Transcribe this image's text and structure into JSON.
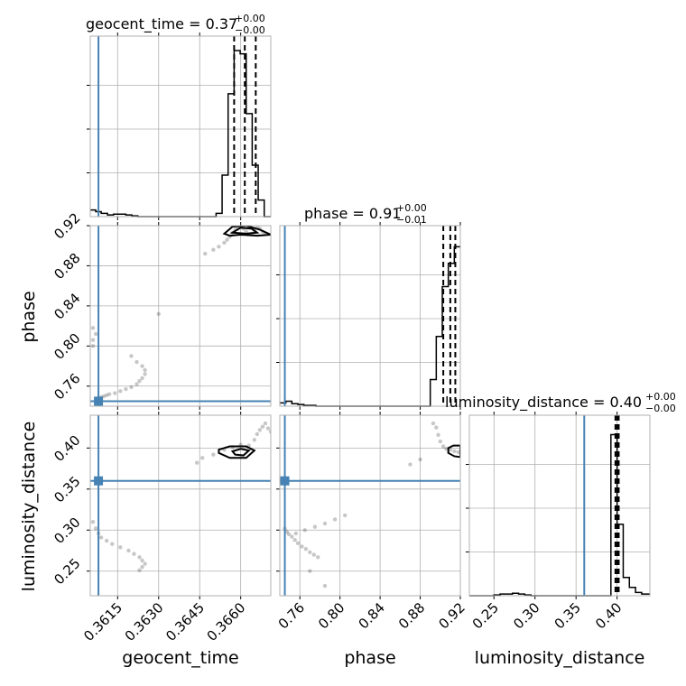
{
  "chart_data": {
    "type": "corner",
    "parameters": [
      {
        "name": "geocent_time",
        "label": "geocent_time",
        "title_main": "geocent_time = 0.37",
        "title_plus": "+0.00",
        "title_minus": "−0.00",
        "lim": [
          0.3605,
          0.3671
        ],
        "ticks": [
          0.3615,
          0.363,
          0.3645,
          0.366
        ],
        "tick_labels": [
          "0.3615",
          "0.3630",
          "0.3645",
          "0.3660"
        ],
        "truth": 0.3608,
        "quantiles": [
          0.36576,
          0.36615,
          0.36655
        ]
      },
      {
        "name": "phase",
        "label": "phase",
        "title_main": "phase = 0.91",
        "title_plus": "+0.00",
        "title_minus": "−0.01",
        "lim": [
          0.74,
          0.92
        ],
        "ticks": [
          0.76,
          0.8,
          0.84,
          0.88,
          0.92
        ],
        "tick_labels": [
          "0.76",
          "0.80",
          "0.84",
          "0.88",
          "0.92"
        ],
        "truth": 0.745,
        "quantiles": [
          0.903,
          0.91,
          0.915
        ]
      },
      {
        "name": "luminosity_distance",
        "label": "luminosity_distance",
        "title_main": "luminosity_distance = 0.40",
        "title_plus": "+0.00",
        "title_minus": "−0.00",
        "lim": [
          0.22,
          0.44
        ],
        "ticks": [
          0.25,
          0.3,
          0.35,
          0.4
        ],
        "tick_labels": [
          "0.25",
          "0.30",
          "0.35",
          "0.40"
        ],
        "truth": 0.36,
        "quantiles": [
          0.398,
          0.4,
          0.402
        ]
      }
    ],
    "histograms": [
      {
        "param": "geocent_time",
        "max": 1.0,
        "edges": [
          0.3605,
          0.3607,
          0.3609,
          0.36113,
          0.36135,
          0.36157,
          0.3618,
          0.36202,
          0.36224,
          0.36246,
          0.36268,
          0.3629,
          0.36312,
          0.36334,
          0.36356,
          0.36378,
          0.364,
          0.36422,
          0.36444,
          0.36466,
          0.36488,
          0.3651,
          0.36532,
          0.36554,
          0.36576,
          0.36598,
          0.3662,
          0.36642,
          0.36664,
          0.36686,
          0.3671
        ],
        "counts": [
          0.04,
          0.03,
          0.02,
          0.01,
          0.015,
          0.015,
          0.01,
          0.005,
          0,
          0,
          0,
          0,
          0,
          0,
          0,
          0,
          0,
          0,
          0,
          0,
          0,
          0.02,
          0.25,
          0.74,
          1.0,
          0.98,
          0.62,
          0.31,
          0.1,
          0
        ]
      },
      {
        "param": "phase",
        "max": 1.0,
        "edges": [
          0.74,
          0.746,
          0.752,
          0.758,
          0.764,
          0.77,
          0.776,
          0.782,
          0.788,
          0.794,
          0.8,
          0.806,
          0.812,
          0.818,
          0.824,
          0.83,
          0.836,
          0.842,
          0.848,
          0.854,
          0.86,
          0.866,
          0.872,
          0.878,
          0.884,
          0.89,
          0.896,
          0.902,
          0.908,
          0.914,
          0.92
        ],
        "counts": [
          0.02,
          0.03,
          0.015,
          0.01,
          0.005,
          0.005,
          0,
          0,
          0,
          0,
          0,
          0,
          0,
          0,
          0,
          0,
          0,
          0,
          0,
          0,
          0,
          0,
          0,
          0,
          0,
          0.16,
          0.42,
          0.72,
          0.86,
          0.96
        ]
      },
      {
        "param": "luminosity_distance",
        "max": 1.0,
        "edges": [
          0.22,
          0.2275,
          0.235,
          0.2425,
          0.25,
          0.2575,
          0.265,
          0.2725,
          0.28,
          0.2875,
          0.295,
          0.3025,
          0.31,
          0.3175,
          0.325,
          0.3325,
          0.34,
          0.3475,
          0.355,
          0.3625,
          0.37,
          0.3775,
          0.385,
          0.3925,
          0.4,
          0.4075,
          0.415,
          0.4225,
          0.43,
          0.44
        ],
        "counts": [
          0,
          0,
          0,
          0,
          0.005,
          0.01,
          0.01,
          0.015,
          0.01,
          0.005,
          0,
          0,
          0,
          0,
          0,
          0,
          0,
          0,
          0,
          0,
          0,
          0,
          0,
          0.97,
          0.43,
          0.11,
          0.05,
          0.02,
          0.01
        ]
      }
    ],
    "scatter": [
      {
        "x": "geocent_time",
        "y": "phase",
        "truth": [
          0.3608,
          0.745
        ],
        "points": [
          [
            0.3608,
            0.748
          ],
          [
            0.3609,
            0.749
          ],
          [
            0.361,
            0.75
          ],
          [
            0.3611,
            0.751
          ],
          [
            0.3612,
            0.752
          ],
          [
            0.3614,
            0.753
          ],
          [
            0.3616,
            0.755
          ],
          [
            0.3618,
            0.757
          ],
          [
            0.362,
            0.759
          ],
          [
            0.3622,
            0.762
          ],
          [
            0.3623,
            0.765
          ],
          [
            0.3624,
            0.768
          ],
          [
            0.3625,
            0.772
          ],
          [
            0.3625,
            0.776
          ],
          [
            0.3624,
            0.78
          ],
          [
            0.3622,
            0.784
          ],
          [
            0.362,
            0.79
          ],
          [
            0.3606,
            0.8
          ],
          [
            0.3606,
            0.806
          ],
          [
            0.3607,
            0.812
          ],
          [
            0.3606,
            0.818
          ],
          [
            0.363,
            0.832
          ],
          [
            0.3647,
            0.892
          ],
          [
            0.365,
            0.896
          ],
          [
            0.3652,
            0.899
          ],
          [
            0.3654,
            0.903
          ],
          [
            0.3655,
            0.906
          ],
          [
            0.3656,
            0.909
          ],
          [
            0.3657,
            0.913
          ],
          [
            0.3658,
            0.916
          ],
          [
            0.3659,
            0.918
          ],
          [
            0.366,
            0.919
          ],
          [
            0.3661,
            0.917
          ],
          [
            0.3662,
            0.914
          ],
          [
            0.3664,
            0.912
          ],
          [
            0.3665,
            0.915
          ],
          [
            0.3666,
            0.918
          ],
          [
            0.3667,
            0.917
          ],
          [
            0.3668,
            0.914
          ],
          [
            0.3669,
            0.912
          ]
        ],
        "contours": [
          [
            [
              0.3654,
              0.912
            ],
            [
              0.3657,
              0.919
            ],
            [
              0.3662,
              0.92
            ],
            [
              0.3667,
              0.916
            ],
            [
              0.3671,
              0.911
            ],
            [
              0.3666,
              0.91
            ],
            [
              0.366,
              0.911
            ],
            [
              0.3656,
              0.91
            ],
            [
              0.3654,
              0.912
            ]
          ],
          [
            [
              0.3657,
              0.913
            ],
            [
              0.366,
              0.918
            ],
            [
              0.3664,
              0.917
            ],
            [
              0.3666,
              0.913
            ],
            [
              0.3662,
              0.912
            ],
            [
              0.3657,
              0.913
            ]
          ]
        ]
      },
      {
        "x": "geocent_time",
        "y": "luminosity_distance",
        "truth": [
          0.3608,
          0.36
        ],
        "points": [
          [
            0.3606,
            0.31
          ],
          [
            0.3607,
            0.302
          ],
          [
            0.3608,
            0.296
          ],
          [
            0.3609,
            0.291
          ],
          [
            0.3611,
            0.287
          ],
          [
            0.3613,
            0.283
          ],
          [
            0.3616,
            0.279
          ],
          [
            0.3619,
            0.275
          ],
          [
            0.3621,
            0.271
          ],
          [
            0.3623,
            0.267
          ],
          [
            0.3624,
            0.263
          ],
          [
            0.3625,
            0.259
          ],
          [
            0.3624,
            0.255
          ],
          [
            0.3623,
            0.251
          ],
          [
            0.3644,
            0.382
          ],
          [
            0.3646,
            0.388
          ],
          [
            0.365,
            0.392
          ],
          [
            0.3654,
            0.398
          ],
          [
            0.3657,
            0.401
          ],
          [
            0.366,
            0.404
          ],
          [
            0.3663,
            0.403
          ],
          [
            0.3665,
            0.41
          ],
          [
            0.3666,
            0.417
          ],
          [
            0.3667,
            0.422
          ],
          [
            0.3668,
            0.426
          ],
          [
            0.3669,
            0.43
          ],
          [
            0.367,
            0.424
          ],
          [
            0.3671,
            0.42
          ]
        ],
        "contours": [
          [
            [
              0.3652,
              0.398
            ],
            [
              0.3656,
              0.402
            ],
            [
              0.3662,
              0.402
            ],
            [
              0.3665,
              0.397
            ],
            [
              0.3662,
              0.388
            ],
            [
              0.3656,
              0.388
            ],
            [
              0.3652,
              0.394
            ],
            [
              0.3652,
              0.398
            ]
          ],
          [
            [
              0.3657,
              0.396
            ],
            [
              0.366,
              0.399
            ],
            [
              0.3663,
              0.397
            ],
            [
              0.3661,
              0.391
            ],
            [
              0.3658,
              0.392
            ],
            [
              0.3657,
              0.396
            ]
          ]
        ]
      },
      {
        "x": "phase",
        "y": "luminosity_distance",
        "truth": [
          0.745,
          0.36
        ],
        "points": [
          [
            0.745,
            0.302
          ],
          [
            0.747,
            0.298
          ],
          [
            0.749,
            0.295
          ],
          [
            0.752,
            0.292
          ],
          [
            0.755,
            0.288
          ],
          [
            0.758,
            0.284
          ],
          [
            0.762,
            0.28
          ],
          [
            0.766,
            0.277
          ],
          [
            0.77,
            0.273
          ],
          [
            0.774,
            0.27
          ],
          [
            0.778,
            0.267
          ],
          [
            0.756,
            0.296
          ],
          [
            0.765,
            0.3
          ],
          [
            0.775,
            0.304
          ],
          [
            0.785,
            0.308
          ],
          [
            0.795,
            0.313
          ],
          [
            0.805,
            0.318
          ],
          [
            0.77,
            0.25
          ],
          [
            0.785,
            0.232
          ],
          [
            0.87,
            0.38
          ],
          [
            0.88,
            0.386
          ],
          [
            0.893,
            0.43
          ],
          [
            0.896,
            0.425
          ],
          [
            0.898,
            0.416
          ],
          [
            0.9,
            0.408
          ],
          [
            0.903,
            0.402
          ],
          [
            0.906,
            0.399
          ],
          [
            0.91,
            0.398
          ],
          [
            0.914,
            0.396
          ],
          [
            0.918,
            0.395
          ]
        ],
        "contours": [
          [
            [
              0.908,
              0.4
            ],
            [
              0.913,
              0.403
            ],
            [
              0.92,
              0.403
            ],
            [
              0.92,
              0.389
            ],
            [
              0.914,
              0.39
            ],
            [
              0.908,
              0.394
            ],
            [
              0.908,
              0.4
            ]
          ]
        ]
      }
    ]
  }
}
